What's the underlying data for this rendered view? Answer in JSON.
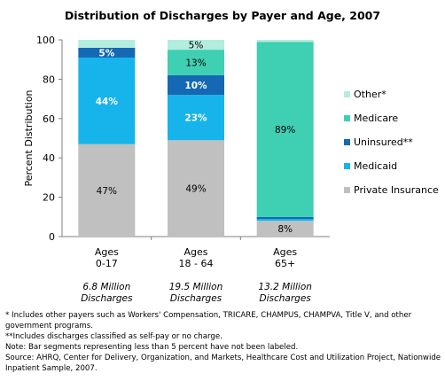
{
  "chart_data": {
    "type": "bar",
    "stacked": true,
    "title": "Distribution of Discharges by Payer and Age, 2007",
    "xlabel": "",
    "ylabel": "Percent Distribution",
    "ylim": [
      0,
      100
    ],
    "yticks": [
      "0",
      "20",
      "40",
      "60",
      "80",
      "100"
    ],
    "categories": [
      {
        "lines": [
          "Ages",
          "0-17"
        ],
        "sub": [
          "6.8 Million",
          "Discharges"
        ]
      },
      {
        "lines": [
          "Ages",
          "18 - 64"
        ],
        "sub": [
          "19.5 Million",
          "Discharges"
        ]
      },
      {
        "lines": [
          "Ages",
          "65+"
        ],
        "sub": [
          "13.2 Million",
          "Discharges"
        ]
      }
    ],
    "series": [
      {
        "name": "Private Insurance",
        "color": "#c0c0c0",
        "values": [
          47,
          49,
          8
        ],
        "labels": [
          "47%",
          "49%",
          "8%"
        ],
        "label_color": "#000000"
      },
      {
        "name": "Medicaid",
        "color": "#16b4ea",
        "values": [
          44,
          23,
          1
        ],
        "labels": [
          "44%",
          "23%",
          ""
        ],
        "label_color": "#ffffff"
      },
      {
        "name": "Uninsured**",
        "color": "#1468b4",
        "values": [
          5,
          10,
          1
        ],
        "labels": [
          "5%",
          "10%",
          ""
        ],
        "label_color": "#ffffff"
      },
      {
        "name": "Medicare",
        "color": "#3fcfb3",
        "values": [
          0,
          13,
          89
        ],
        "labels": [
          "",
          "13%",
          "89%"
        ],
        "label_color": "#000000"
      },
      {
        "name": "Other*",
        "color": "#b3eddd",
        "values": [
          4,
          5,
          1
        ],
        "labels": [
          "",
          "5%",
          ""
        ],
        "label_color": "#000000"
      }
    ],
    "legend_position": "right",
    "grid": false
  },
  "footnotes": [
    "* Includes other payers such as Workers' Compensation, TRICARE, CHAMPUS, CHAMPVA, Title V, and other government programs.",
    "**Includes discharges classified as self-pay or no charge.",
    "Note: Bar segments representing less than 5 percent have not been labeled.",
    "Source:  AHRQ, Center for Delivery, Organization, and Markets, Healthcare Cost and Utilization Project, Nationwide Inpatient Sample, 2007."
  ]
}
